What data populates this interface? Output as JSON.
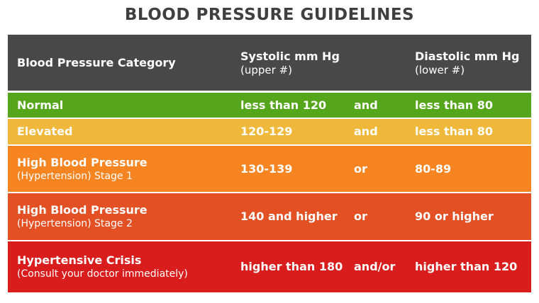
{
  "title": "BLOOD PRESSURE GUIDELINES",
  "colors": {
    "header": "#484848",
    "normal": "#55a61b",
    "elevated": "#f0b83a",
    "stage1": "#f68421",
    "stage2": "#e35024",
    "crisis": "#d91c1c"
  },
  "header": {
    "category": "Blood Pressure Category",
    "systolic": "Systolic mm Hg",
    "systolic_sub": "(upper #)",
    "diastolic": "Diastolic mm Hg",
    "diastolic_sub": "(lower #)"
  },
  "rows": [
    {
      "category": "Normal",
      "sub": "",
      "systolic": "less than 120",
      "conj": "and",
      "diastolic": "less than 80"
    },
    {
      "category": "Elevated",
      "sub": "",
      "systolic": "120-129",
      "conj": "and",
      "diastolic": "less than 80"
    },
    {
      "category": "High Blood Pressure",
      "sub": "(Hypertension) Stage 1",
      "systolic": "130-139",
      "conj": "or",
      "diastolic": "80-89"
    },
    {
      "category": "High Blood Pressure",
      "sub": "(Hypertension) Stage 2",
      "systolic": "140 and higher",
      "conj": "or",
      "diastolic": "90 or higher"
    },
    {
      "category": "Hypertensive Crisis",
      "sub": "(Consult your doctor immediately)",
      "systolic": "higher than 180",
      "conj": "and/or",
      "diastolic": "higher than 120"
    }
  ]
}
